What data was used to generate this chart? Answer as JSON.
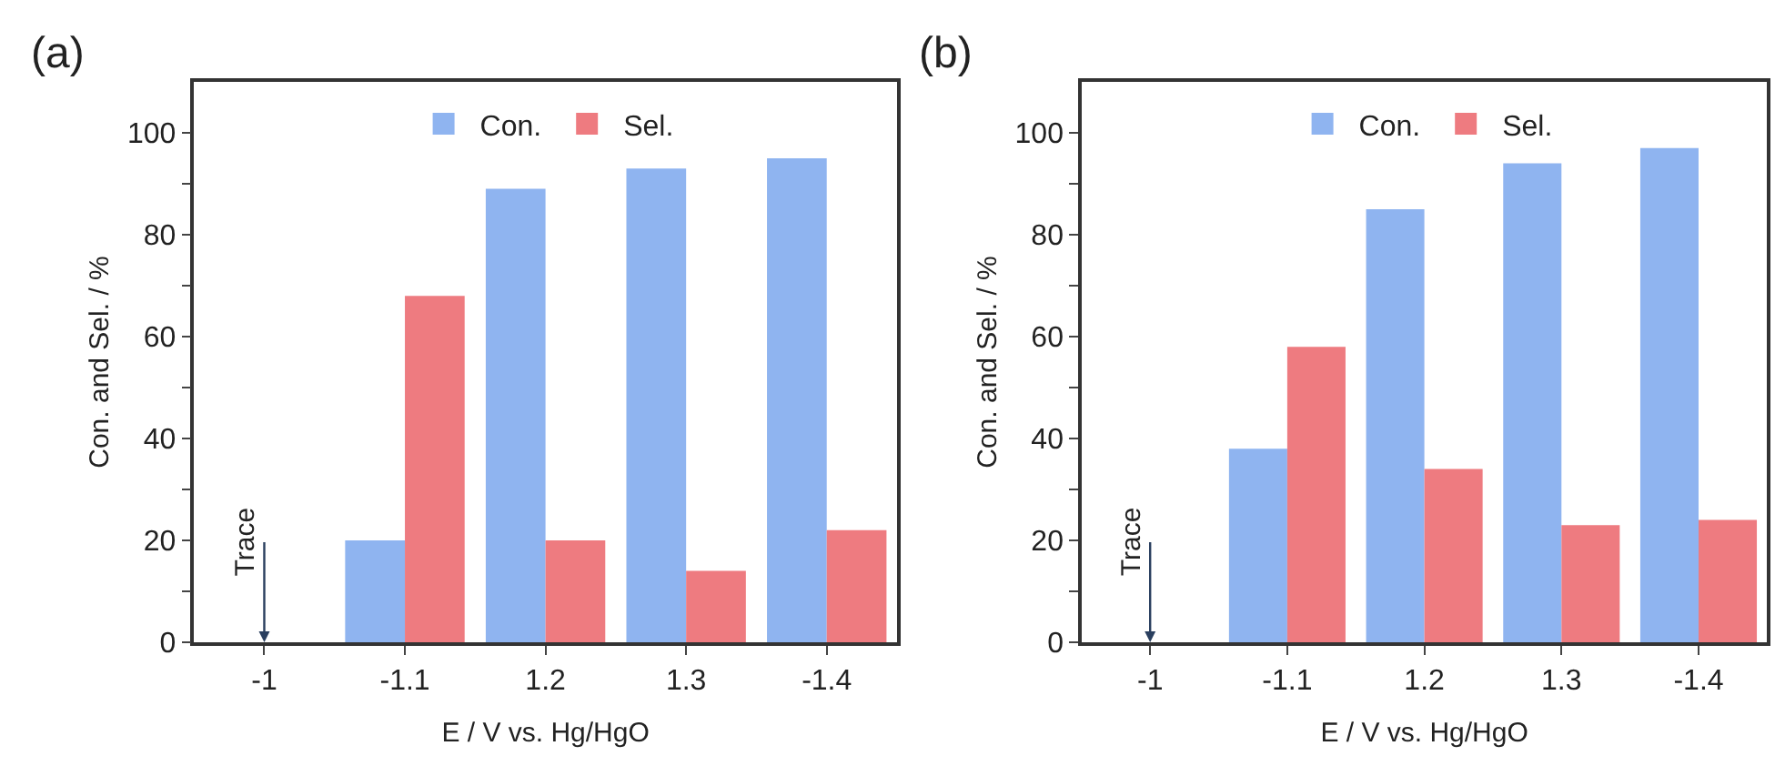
{
  "chart_data": [
    {
      "type": "bar",
      "title": "(a)",
      "xlabel": "E / V vs. Hg/HgO",
      "ylabel": "Con. and Sel. / %",
      "categories": [
        "-1",
        "-1.1",
        "1.2",
        "1.3",
        "-1.4"
      ],
      "series": [
        {
          "name": "Con.",
          "color": "#8fb4f0",
          "values": [
            0,
            20,
            89,
            93,
            95
          ]
        },
        {
          "name": "Sel.",
          "color": "#ee7b80",
          "values": [
            0,
            68,
            20,
            14,
            22
          ]
        }
      ],
      "ylim": [
        0,
        110
      ],
      "yticks": [
        0,
        {
          "value": 10,
          "label": null
        },
        20,
        {
          "value": 30,
          "label": null
        },
        40,
        {
          "value": 50,
          "label": null
        },
        60,
        {
          "value": 70,
          "label": null
        },
        80,
        {
          "value": 90,
          "label": null
        },
        100
      ],
      "annotations": [
        {
          "text": "Trace",
          "x": "-1",
          "y": 0
        }
      ],
      "legend": "top"
    },
    {
      "type": "bar",
      "title": "(b)",
      "xlabel": "E / V vs. Hg/HgO",
      "ylabel": "Con. and Sel. / %",
      "categories": [
        "-1",
        "-1.1",
        "1.2",
        "1.3",
        "-1.4"
      ],
      "series": [
        {
          "name": "Con.",
          "color": "#8fb4f0",
          "values": [
            0,
            38,
            85,
            94,
            97
          ]
        },
        {
          "name": "Sel.",
          "color": "#ee7b80",
          "values": [
            0,
            58,
            34,
            23,
            24
          ]
        }
      ],
      "ylim": [
        0,
        110
      ],
      "yticks": [
        0,
        {
          "value": 10,
          "label": null
        },
        20,
        {
          "value": 30,
          "label": null
        },
        40,
        {
          "value": 50,
          "label": null
        },
        60,
        {
          "value": 70,
          "label": null
        },
        80,
        {
          "value": 90,
          "label": null
        },
        100
      ],
      "annotations": [
        {
          "text": "Trace",
          "x": "-1",
          "y": 0
        }
      ],
      "legend": "top"
    }
  ]
}
